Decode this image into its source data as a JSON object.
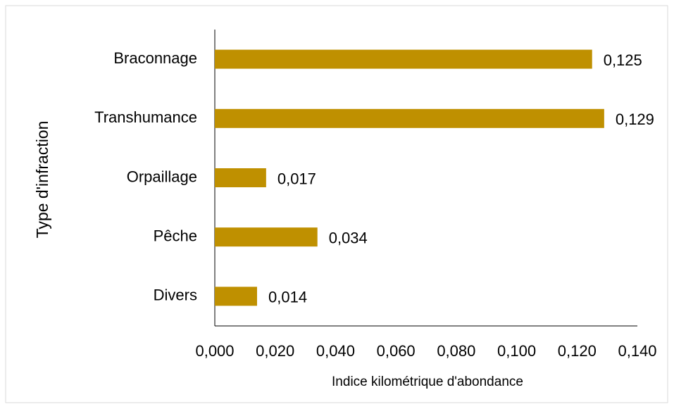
{
  "chart_data": {
    "type": "bar",
    "orientation": "horizontal",
    "categories": [
      "Braconnage",
      "Transhumance",
      "Orpaillage",
      "Pêche",
      "Divers"
    ],
    "values": [
      0.125,
      0.129,
      0.017,
      0.034,
      0.014
    ],
    "value_labels": [
      "0,125",
      "0,129",
      "0,017",
      "0,034",
      "0,014"
    ],
    "color": "#bf9000",
    "xlabel": "Indice kilométrique d'abondance",
    "ylabel": "Type d'infraction",
    "xlim": [
      0,
      0.14
    ],
    "xticks": [
      {
        "value": 0,
        "label": "0,000"
      },
      {
        "value": 0.02,
        "label": "0,020"
      },
      {
        "value": 0.04,
        "label": "0,040"
      },
      {
        "value": 0.06,
        "label": "0,060"
      },
      {
        "value": 0.08,
        "label": "0,080"
      },
      {
        "value": 0.1,
        "label": "0,100"
      },
      {
        "value": 0.12,
        "label": "0,120"
      },
      {
        "value": 0.14,
        "label": "0,140"
      }
    ],
    "grid": false
  }
}
